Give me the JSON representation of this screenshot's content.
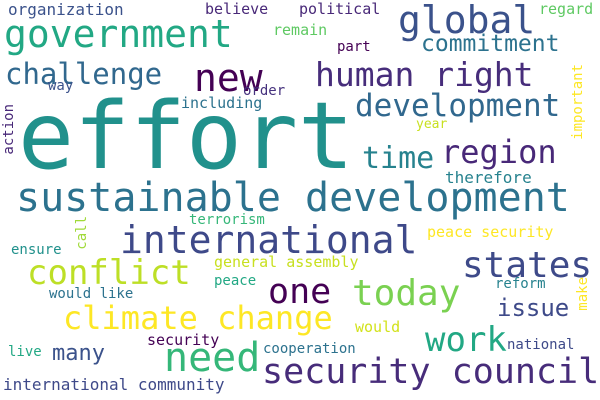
{
  "word_cloud": {
    "words": [
      {
        "id": "effort",
        "text": "effort",
        "color": "#21918c"
      },
      {
        "id": "sustainable-development",
        "text": "sustainable development",
        "color": "#2c728e"
      },
      {
        "id": "government",
        "text": "government",
        "color": "#22a884"
      },
      {
        "id": "global",
        "text": "global",
        "color": "#3b528b"
      },
      {
        "id": "new",
        "text": "new",
        "color": "#440154"
      },
      {
        "id": "human-right",
        "text": "human right",
        "color": "#472d7b"
      },
      {
        "id": "challenge",
        "text": "challenge",
        "color": "#31688e"
      },
      {
        "id": "development",
        "text": "development",
        "color": "#31688e"
      },
      {
        "id": "commitment",
        "text": "commitment",
        "color": "#2c728e"
      },
      {
        "id": "time",
        "text": "time",
        "color": "#26828e"
      },
      {
        "id": "region",
        "text": "region",
        "color": "#482878"
      },
      {
        "id": "international",
        "text": "international",
        "color": "#3e4989"
      },
      {
        "id": "conflict",
        "text": "conflict",
        "color": "#bddf26"
      },
      {
        "id": "states",
        "text": "states",
        "color": "#3e4a89"
      },
      {
        "id": "one",
        "text": "one",
        "color": "#440154"
      },
      {
        "id": "today",
        "text": "today",
        "color": "#7ad151"
      },
      {
        "id": "climate-change",
        "text": "climate change",
        "color": "#fde725"
      },
      {
        "id": "need",
        "text": "need",
        "color": "#35b779"
      },
      {
        "id": "security-council",
        "text": "security council",
        "color": "#472c7a"
      },
      {
        "id": "work",
        "text": "work",
        "color": "#22a884"
      },
      {
        "id": "issue",
        "text": "issue",
        "color": "#3e4a89"
      },
      {
        "id": "many",
        "text": "many",
        "color": "#3b528b"
      },
      {
        "id": "organization",
        "text": "organization",
        "color": "#3b528b"
      },
      {
        "id": "believe",
        "text": "believe",
        "color": "#482878"
      },
      {
        "id": "political",
        "text": "political",
        "color": "#482878"
      },
      {
        "id": "regard",
        "text": "regard",
        "color": "#5ec962"
      },
      {
        "id": "remain",
        "text": "remain",
        "color": "#5ec962"
      },
      {
        "id": "part",
        "text": "part",
        "color": "#440154"
      },
      {
        "id": "way",
        "text": "way",
        "color": "#3b528b"
      },
      {
        "id": "order",
        "text": "order",
        "color": "#46327e"
      },
      {
        "id": "including",
        "text": "including",
        "color": "#2c728e"
      },
      {
        "id": "action",
        "text": "action",
        "color": "#482878"
      },
      {
        "id": "year",
        "text": "year",
        "color": "#c8e020"
      },
      {
        "id": "important",
        "text": "important",
        "color": "#fde725"
      },
      {
        "id": "therefore",
        "text": "therefore",
        "color": "#26828e"
      },
      {
        "id": "terrorism",
        "text": "terrorism",
        "color": "#35b779"
      },
      {
        "id": "call",
        "text": "call",
        "color": "#a0da39"
      },
      {
        "id": "ensure",
        "text": "ensure",
        "color": "#21918c"
      },
      {
        "id": "peace-security",
        "text": "peace security",
        "color": "#fde725"
      },
      {
        "id": "general-assembly",
        "text": "general assembly",
        "color": "#c8e020"
      },
      {
        "id": "peace",
        "text": "peace",
        "color": "#22a884"
      },
      {
        "id": "would-like",
        "text": "would like",
        "color": "#2c728e"
      },
      {
        "id": "reform",
        "text": "reform",
        "color": "#26828e"
      },
      {
        "id": "make",
        "text": "make",
        "color": "#fde725"
      },
      {
        "id": "security",
        "text": "security",
        "color": "#440154"
      },
      {
        "id": "would",
        "text": "would",
        "color": "#d2e21b"
      },
      {
        "id": "live",
        "text": "live",
        "color": "#22a884"
      },
      {
        "id": "cooperation",
        "text": "cooperation",
        "color": "#2c728e"
      },
      {
        "id": "national",
        "text": "national",
        "color": "#3e4a89"
      },
      {
        "id": "international-community",
        "text": "international community",
        "color": "#3e4989"
      }
    ]
  }
}
